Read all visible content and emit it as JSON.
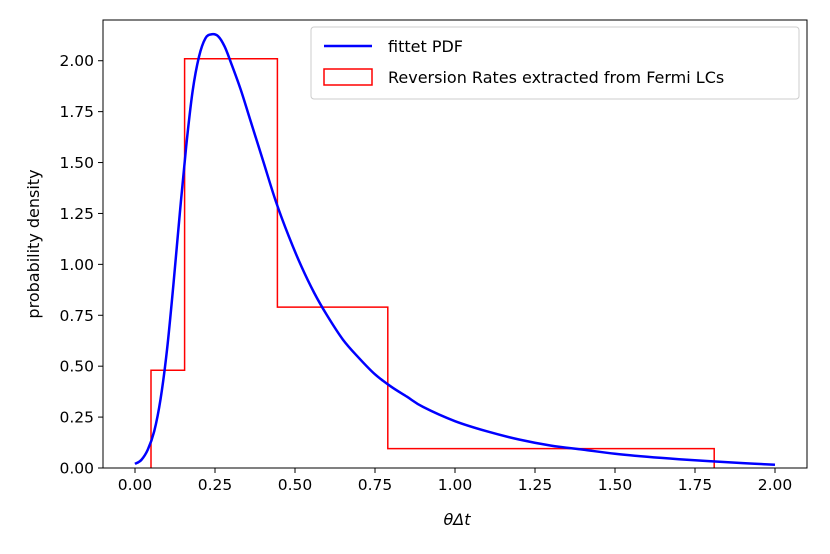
{
  "chart_data": {
    "type": "line",
    "xlabel_italic": "θΔt",
    "ylabel": "probability density",
    "xlim": [
      -0.1,
      2.1
    ],
    "ylim": [
      0.0,
      2.2
    ],
    "x_ticks": [
      "0.00",
      "0.25",
      "0.50",
      "0.75",
      "1.00",
      "1.25",
      "1.50",
      "1.75",
      "2.00"
    ],
    "y_ticks": [
      "0.00",
      "0.25",
      "0.50",
      "0.75",
      "1.00",
      "1.25",
      "1.50",
      "1.75",
      "2.00"
    ],
    "legend_position": "top-right",
    "series": [
      {
        "name": "fittet PDF",
        "kind": "line",
        "color": "#0000ff",
        "x": [
          0.0,
          0.02,
          0.04,
          0.06,
          0.08,
          0.1,
          0.12,
          0.14,
          0.16,
          0.18,
          0.2,
          0.22,
          0.24,
          0.26,
          0.28,
          0.3,
          0.33,
          0.36,
          0.4,
          0.44,
          0.48,
          0.52,
          0.56,
          0.6,
          0.65,
          0.7,
          0.75,
          0.8,
          0.85,
          0.9,
          1.0,
          1.1,
          1.2,
          1.3,
          1.4,
          1.5,
          1.6,
          1.7,
          1.8,
          1.9,
          2.0
        ],
        "y": [
          0.02,
          0.04,
          0.09,
          0.18,
          0.34,
          0.58,
          0.9,
          1.25,
          1.58,
          1.85,
          2.02,
          2.11,
          2.13,
          2.12,
          2.07,
          1.99,
          1.86,
          1.71,
          1.51,
          1.31,
          1.14,
          0.99,
          0.86,
          0.75,
          0.63,
          0.54,
          0.46,
          0.4,
          0.35,
          0.3,
          0.23,
          0.18,
          0.14,
          0.11,
          0.09,
          0.07,
          0.055,
          0.043,
          0.033,
          0.024,
          0.016
        ]
      },
      {
        "name": "Reversion Rates extracted from Fermi LCs",
        "kind": "step-histogram",
        "color": "#ff0000",
        "bin_edges": [
          0.05,
          0.155,
          0.445,
          0.79,
          1.81
        ],
        "values": [
          0.48,
          2.01,
          0.79,
          0.095
        ]
      }
    ]
  }
}
